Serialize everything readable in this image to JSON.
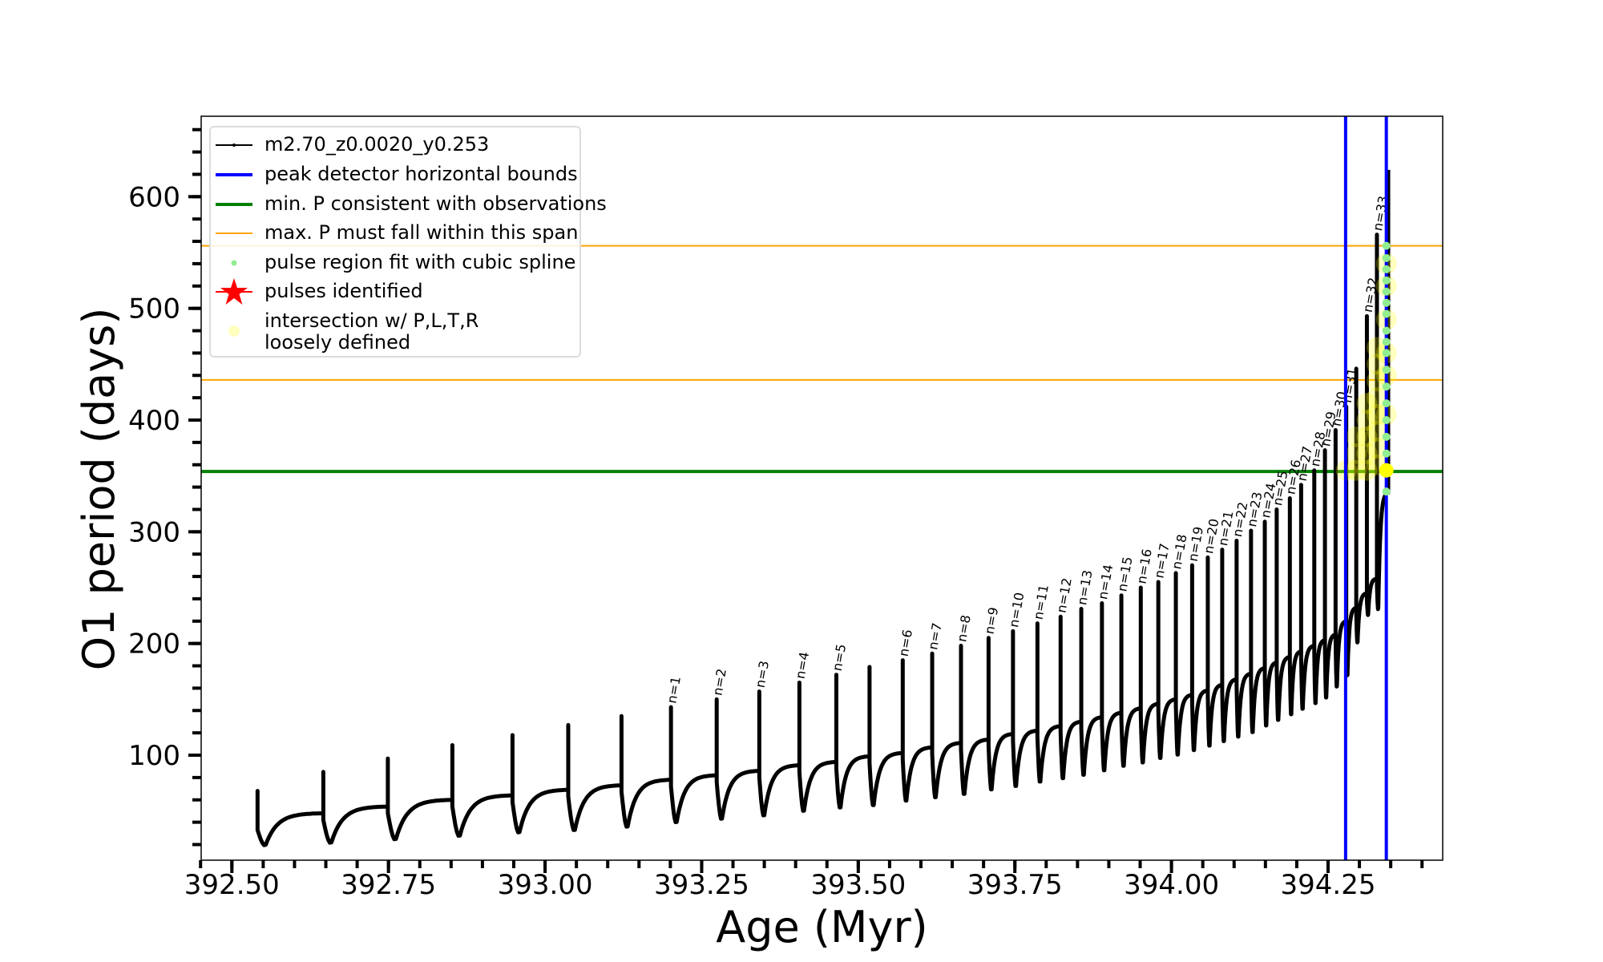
{
  "chart_data": {
    "type": "line",
    "xlabel": "Age (Myr)",
    "ylabel": "O1 period (days)",
    "xlim": [
      392.451,
      394.433
    ],
    "ylim": [
      6,
      672
    ],
    "x_ticks": [
      "392.50",
      "392.75",
      "393.00",
      "393.25",
      "393.50",
      "393.75",
      "394.00",
      "394.25"
    ],
    "y_ticks": [
      "100",
      "200",
      "300",
      "400",
      "500",
      "600"
    ],
    "grid": false,
    "legend_placement": "upper-left",
    "series_name": "m2.70_z0.0020_y0.253",
    "pulses": [
      {
        "age": 392.541,
        "pre": 39,
        "peak": 68,
        "trough": 19,
        "label": ""
      },
      {
        "age": 392.646,
        "pre": 48,
        "peak": 85,
        "trough": 21,
        "label": ""
      },
      {
        "age": 392.749,
        "pre": 54,
        "peak": 97,
        "trough": 24,
        "label": ""
      },
      {
        "age": 392.852,
        "pre": 60,
        "peak": 109,
        "trough": 27,
        "label": ""
      },
      {
        "age": 392.948,
        "pre": 64,
        "peak": 118,
        "trough": 30,
        "label": ""
      },
      {
        "age": 393.037,
        "pre": 69,
        "peak": 127,
        "trough": 32,
        "label": ""
      },
      {
        "age": 393.122,
        "pre": 73,
        "peak": 135,
        "trough": 35,
        "label": ""
      },
      {
        "age": 393.201,
        "pre": 78,
        "peak": 143,
        "trough": 39,
        "label": "n=1"
      },
      {
        "age": 393.274,
        "pre": 82,
        "peak": 150,
        "trough": 42,
        "label": "n=2"
      },
      {
        "age": 393.342,
        "pre": 86,
        "peak": 157,
        "trough": 45,
        "label": "n=3"
      },
      {
        "age": 393.406,
        "pre": 91,
        "peak": 165,
        "trough": 49,
        "label": "n=4"
      },
      {
        "age": 393.465,
        "pre": 94,
        "peak": 172,
        "trough": 52,
        "label": "n=5"
      },
      {
        "age": 393.518,
        "pre": 99,
        "peak": 179,
        "trough": 54,
        "label": ""
      },
      {
        "age": 393.571,
        "pre": 102,
        "peak": 185,
        "trough": 58,
        "label": "n=6"
      },
      {
        "age": 393.618,
        "pre": 107,
        "peak": 191,
        "trough": 61,
        "label": "n=7"
      },
      {
        "age": 393.664,
        "pre": 111,
        "peak": 198,
        "trough": 64,
        "label": "n=8"
      },
      {
        "age": 393.708,
        "pre": 114,
        "peak": 205,
        "trough": 68,
        "label": "n=9"
      },
      {
        "age": 393.747,
        "pre": 119,
        "peak": 211,
        "trough": 71,
        "label": "n=10"
      },
      {
        "age": 393.786,
        "pre": 122,
        "peak": 218,
        "trough": 75,
        "label": "n=11"
      },
      {
        "age": 393.823,
        "pre": 126,
        "peak": 224,
        "trough": 78,
        "label": "n=12"
      },
      {
        "age": 393.856,
        "pre": 130,
        "peak": 231,
        "trough": 81,
        "label": "n=13"
      },
      {
        "age": 393.889,
        "pre": 134,
        "peak": 236,
        "trough": 85,
        "label": "n=14"
      },
      {
        "age": 393.92,
        "pre": 138,
        "peak": 243,
        "trough": 89,
        "label": "n=15"
      },
      {
        "age": 393.951,
        "pre": 142,
        "peak": 250,
        "trough": 92,
        "label": "n=16"
      },
      {
        "age": 393.979,
        "pre": 146,
        "peak": 255,
        "trough": 96,
        "label": "n=17"
      },
      {
        "age": 394.007,
        "pre": 150,
        "peak": 263,
        "trough": 99,
        "label": "n=18"
      },
      {
        "age": 394.033,
        "pre": 154,
        "peak": 270,
        "trough": 103,
        "label": "n=19"
      },
      {
        "age": 394.058,
        "pre": 158,
        "peak": 277,
        "trough": 107,
        "label": "n=20"
      },
      {
        "age": 394.081,
        "pre": 163,
        "peak": 284,
        "trough": 111,
        "label": "n=21"
      },
      {
        "age": 394.104,
        "pre": 168,
        "peak": 292,
        "trough": 115,
        "label": "n=22"
      },
      {
        "age": 394.127,
        "pre": 173,
        "peak": 301,
        "trough": 119,
        "label": "n=23"
      },
      {
        "age": 394.149,
        "pre": 178,
        "peak": 309,
        "trough": 125,
        "label": "n=24"
      },
      {
        "age": 394.168,
        "pre": 183,
        "peak": 320,
        "trough": 130,
        "label": "n=25"
      },
      {
        "age": 394.189,
        "pre": 188,
        "peak": 330,
        "trough": 135,
        "label": "n=26"
      },
      {
        "age": 394.207,
        "pre": 193,
        "peak": 342,
        "trough": 140,
        "label": "n=27"
      },
      {
        "age": 394.228,
        "pre": 198,
        "peak": 355,
        "trough": 145,
        "label": "n=28"
      },
      {
        "age": 394.245,
        "pre": 203,
        "peak": 373,
        "trough": 150,
        "label": "n=29"
      },
      {
        "age": 394.262,
        "pre": 208,
        "peak": 391,
        "trough": 160,
        "label": "n=30"
      },
      {
        "age": 394.279,
        "pre": 220,
        "peak": 412,
        "trough": 170,
        "label": "n=31"
      },
      {
        "age": 394.295,
        "pre": 232,
        "peak": 446,
        "trough": 200,
        "label": ""
      },
      {
        "age": 394.312,
        "pre": 245,
        "peak": 493,
        "trough": 225,
        "label": "n=32"
      },
      {
        "age": 394.328,
        "pre": 258,
        "peak": 566,
        "trough": 230,
        "label": "n=33"
      },
      {
        "age": 394.346,
        "pre": 335,
        "peak": 624,
        "trough": 335,
        "label": ""
      }
    ],
    "vlines": {
      "name": "peak detector horizontal bounds",
      "color": "#0000ff",
      "ages": [
        394.278,
        394.343
      ]
    },
    "hline_min": {
      "name": "min. P consistent with observations",
      "color": "#008000",
      "value": 354
    },
    "hlines_max": {
      "name": "max. P must fall within this span",
      "color": "#ffa500",
      "values": [
        436,
        556
      ]
    },
    "spline_points": {
      "name": "pulse region fit with cubic spline",
      "color": "#90ee90",
      "age": 394.343,
      "values": [
        336,
        370,
        385,
        400,
        415,
        430,
        445,
        460,
        470,
        480,
        495,
        505,
        515,
        525,
        535,
        545,
        556
      ]
    },
    "pulses_identified": {
      "name": "pulses identified",
      "color": "#ff0000"
    },
    "intersection_points": {
      "name": "intersection w/ P,L,T,R\nloosely defined",
      "color": "#ffff00",
      "points": [
        [
          394.279,
          355
        ],
        [
          394.295,
          355
        ],
        [
          394.295,
          370
        ],
        [
          394.295,
          385
        ],
        [
          394.312,
          355
        ],
        [
          394.312,
          370
        ],
        [
          394.312,
          385
        ],
        [
          394.312,
          400
        ],
        [
          394.312,
          415
        ],
        [
          394.328,
          360
        ],
        [
          394.328,
          375
        ],
        [
          394.328,
          390
        ],
        [
          394.328,
          405
        ],
        [
          394.328,
          420
        ],
        [
          394.328,
          435
        ],
        [
          394.328,
          450
        ],
        [
          394.328,
          465
        ],
        [
          394.343,
          405
        ],
        [
          394.343,
          440
        ],
        [
          394.343,
          460
        ],
        [
          394.343,
          490
        ],
        [
          394.343,
          520
        ],
        [
          394.343,
          540
        ]
      ],
      "highlight": [
        394.343,
        355
      ]
    }
  },
  "legend": {
    "items": [
      {
        "label": "m2.70_z0.0020_y0.253",
        "icon": "black-line-dot"
      },
      {
        "label": "peak detector horizontal bounds",
        "icon": "blue-line"
      },
      {
        "label": "min. P consistent with observations",
        "icon": "green-line"
      },
      {
        "label": "max. P must fall within this span",
        "icon": "orange-line"
      },
      {
        "label": "pulse region fit with cubic spline",
        "icon": "lightgreen-dot"
      },
      {
        "label": "pulses identified",
        "icon": "red-star"
      },
      {
        "label": "intersection w/ P,L,T,R",
        "label2": "loosely defined",
        "icon": "yellow-circle"
      }
    ]
  }
}
